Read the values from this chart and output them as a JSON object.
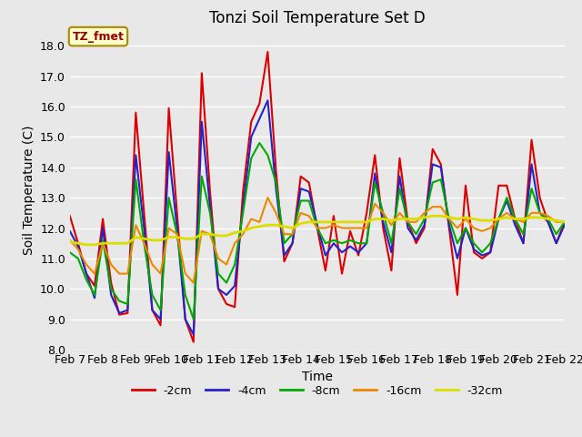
{
  "title": "Tonzi Soil Temperature Set D",
  "xlabel": "Time",
  "ylabel": "Soil Temperature (C)",
  "ylim": [
    8.0,
    18.5
  ],
  "yticks": [
    8.0,
    9.0,
    10.0,
    11.0,
    12.0,
    13.0,
    14.0,
    15.0,
    16.0,
    17.0,
    18.0
  ],
  "xtick_labels": [
    "Feb 7",
    "Feb 8",
    "Feb 9",
    "Feb 10",
    "Feb 11",
    "Feb 12",
    "Feb 13",
    "Feb 14",
    "Feb 15",
    "Feb 16",
    "Feb 17",
    "Feb 18",
    "Feb 19",
    "Feb 20",
    "Feb 21",
    "Feb 22"
  ],
  "legend_labels": [
    "-2cm",
    "-4cm",
    "-8cm",
    "-16cm",
    "-32cm"
  ],
  "legend_colors": [
    "#dd0000",
    "#2222cc",
    "#00aa00",
    "#ee8800",
    "#dddd00"
  ],
  "line_widths": [
    1.5,
    1.5,
    1.5,
    1.5,
    2.0
  ],
  "annotation_text": "TZ_fmet",
  "annotation_box_facecolor": "#ffffcc",
  "annotation_box_edgecolor": "#aa8800",
  "annotation_text_color": "#990000",
  "figure_facecolor": "#e8e8e8",
  "axes_facecolor": "#e8e8e8",
  "grid_color": "#ffffff",
  "x_days": [
    7,
    7.25,
    7.5,
    7.75,
    8,
    8.25,
    8.5,
    8.75,
    9,
    9.25,
    9.5,
    9.75,
    10,
    10.25,
    10.5,
    10.75,
    11,
    11.25,
    11.5,
    11.75,
    12,
    12.25,
    12.5,
    12.75,
    13,
    13.25,
    13.5,
    13.75,
    14,
    14.25,
    14.5,
    14.75,
    15,
    15.25,
    15.5,
    15.75,
    16,
    16.25,
    16.5,
    16.75,
    17,
    17.25,
    17.5,
    17.75,
    18,
    18.25,
    18.5,
    18.75,
    19,
    19.25,
    19.5,
    19.75,
    20,
    20.25,
    20.5,
    20.75,
    21,
    21.25,
    21.5,
    21.75,
    22
  ],
  "y_2cm": [
    12.4,
    11.5,
    10.5,
    10.1,
    12.3,
    10.2,
    9.15,
    9.2,
    15.8,
    12.5,
    9.3,
    8.8,
    15.95,
    12.5,
    9.0,
    8.25,
    17.1,
    13.2,
    10.0,
    9.5,
    9.4,
    13.2,
    15.5,
    16.1,
    17.8,
    13.9,
    10.9,
    11.5,
    13.7,
    13.5,
    12.0,
    10.6,
    12.4,
    10.5,
    11.9,
    11.1,
    12.5,
    14.4,
    12.0,
    10.6,
    14.3,
    12.2,
    11.5,
    12.0,
    14.6,
    14.1,
    12.0,
    9.8,
    13.4,
    11.2,
    11.0,
    11.2,
    13.4,
    13.4,
    12.3,
    11.5,
    14.9,
    13.0,
    12.2,
    11.5,
    12.2
  ],
  "y_4cm": [
    11.9,
    11.4,
    10.5,
    9.7,
    12.0,
    9.8,
    9.2,
    9.3,
    14.4,
    12.0,
    9.3,
    9.0,
    14.5,
    12.0,
    9.0,
    8.5,
    15.5,
    12.7,
    10.0,
    9.8,
    10.1,
    12.7,
    15.0,
    15.6,
    16.2,
    13.3,
    11.1,
    11.5,
    13.3,
    13.2,
    12.1,
    11.1,
    11.5,
    11.2,
    11.4,
    11.2,
    11.5,
    13.8,
    12.2,
    11.2,
    13.7,
    12.0,
    11.6,
    12.1,
    14.1,
    14.0,
    12.1,
    11.0,
    12.0,
    11.3,
    11.1,
    11.2,
    12.3,
    12.9,
    12.1,
    11.5,
    14.1,
    12.5,
    12.2,
    11.5,
    12.1
  ],
  "y_8cm": [
    11.2,
    11.0,
    10.3,
    9.8,
    11.6,
    10.0,
    9.6,
    9.5,
    13.6,
    11.5,
    9.8,
    9.3,
    13.0,
    11.8,
    9.8,
    9.0,
    13.7,
    12.5,
    10.5,
    10.2,
    10.8,
    12.5,
    14.3,
    14.8,
    14.4,
    13.5,
    11.5,
    11.8,
    12.9,
    12.9,
    12.0,
    11.5,
    11.6,
    11.5,
    11.6,
    11.5,
    11.5,
    13.5,
    12.5,
    11.5,
    13.3,
    12.2,
    11.8,
    12.3,
    13.5,
    13.6,
    12.3,
    11.5,
    12.0,
    11.5,
    11.2,
    11.5,
    12.3,
    13.0,
    12.3,
    11.8,
    13.3,
    12.5,
    12.3,
    11.8,
    12.2
  ],
  "y_16cm": [
    11.6,
    11.3,
    10.8,
    10.5,
    11.5,
    10.8,
    10.5,
    10.5,
    12.1,
    11.5,
    10.8,
    10.5,
    12.0,
    11.8,
    10.5,
    10.2,
    11.9,
    11.8,
    11.0,
    10.8,
    11.5,
    11.8,
    12.3,
    12.2,
    13.0,
    12.5,
    11.8,
    11.8,
    12.5,
    12.4,
    12.0,
    12.0,
    12.1,
    12.0,
    12.0,
    12.0,
    12.0,
    12.8,
    12.5,
    12.1,
    12.5,
    12.2,
    12.2,
    12.5,
    12.7,
    12.7,
    12.3,
    12.0,
    12.3,
    12.0,
    11.9,
    12.0,
    12.3,
    12.5,
    12.3,
    12.2,
    12.5,
    12.5,
    12.4,
    12.2,
    12.2
  ],
  "y_32cm": [
    11.55,
    11.5,
    11.45,
    11.45,
    11.5,
    11.5,
    11.5,
    11.5,
    11.7,
    11.65,
    11.6,
    11.6,
    11.7,
    11.7,
    11.65,
    11.65,
    11.8,
    11.8,
    11.75,
    11.75,
    11.85,
    11.9,
    12.0,
    12.05,
    12.1,
    12.1,
    12.05,
    12.0,
    12.15,
    12.2,
    12.2,
    12.2,
    12.2,
    12.2,
    12.2,
    12.2,
    12.2,
    12.3,
    12.3,
    12.25,
    12.3,
    12.3,
    12.3,
    12.35,
    12.4,
    12.4,
    12.35,
    12.3,
    12.35,
    12.3,
    12.25,
    12.25,
    12.3,
    12.35,
    12.3,
    12.3,
    12.35,
    12.35,
    12.3,
    12.25,
    12.2
  ]
}
